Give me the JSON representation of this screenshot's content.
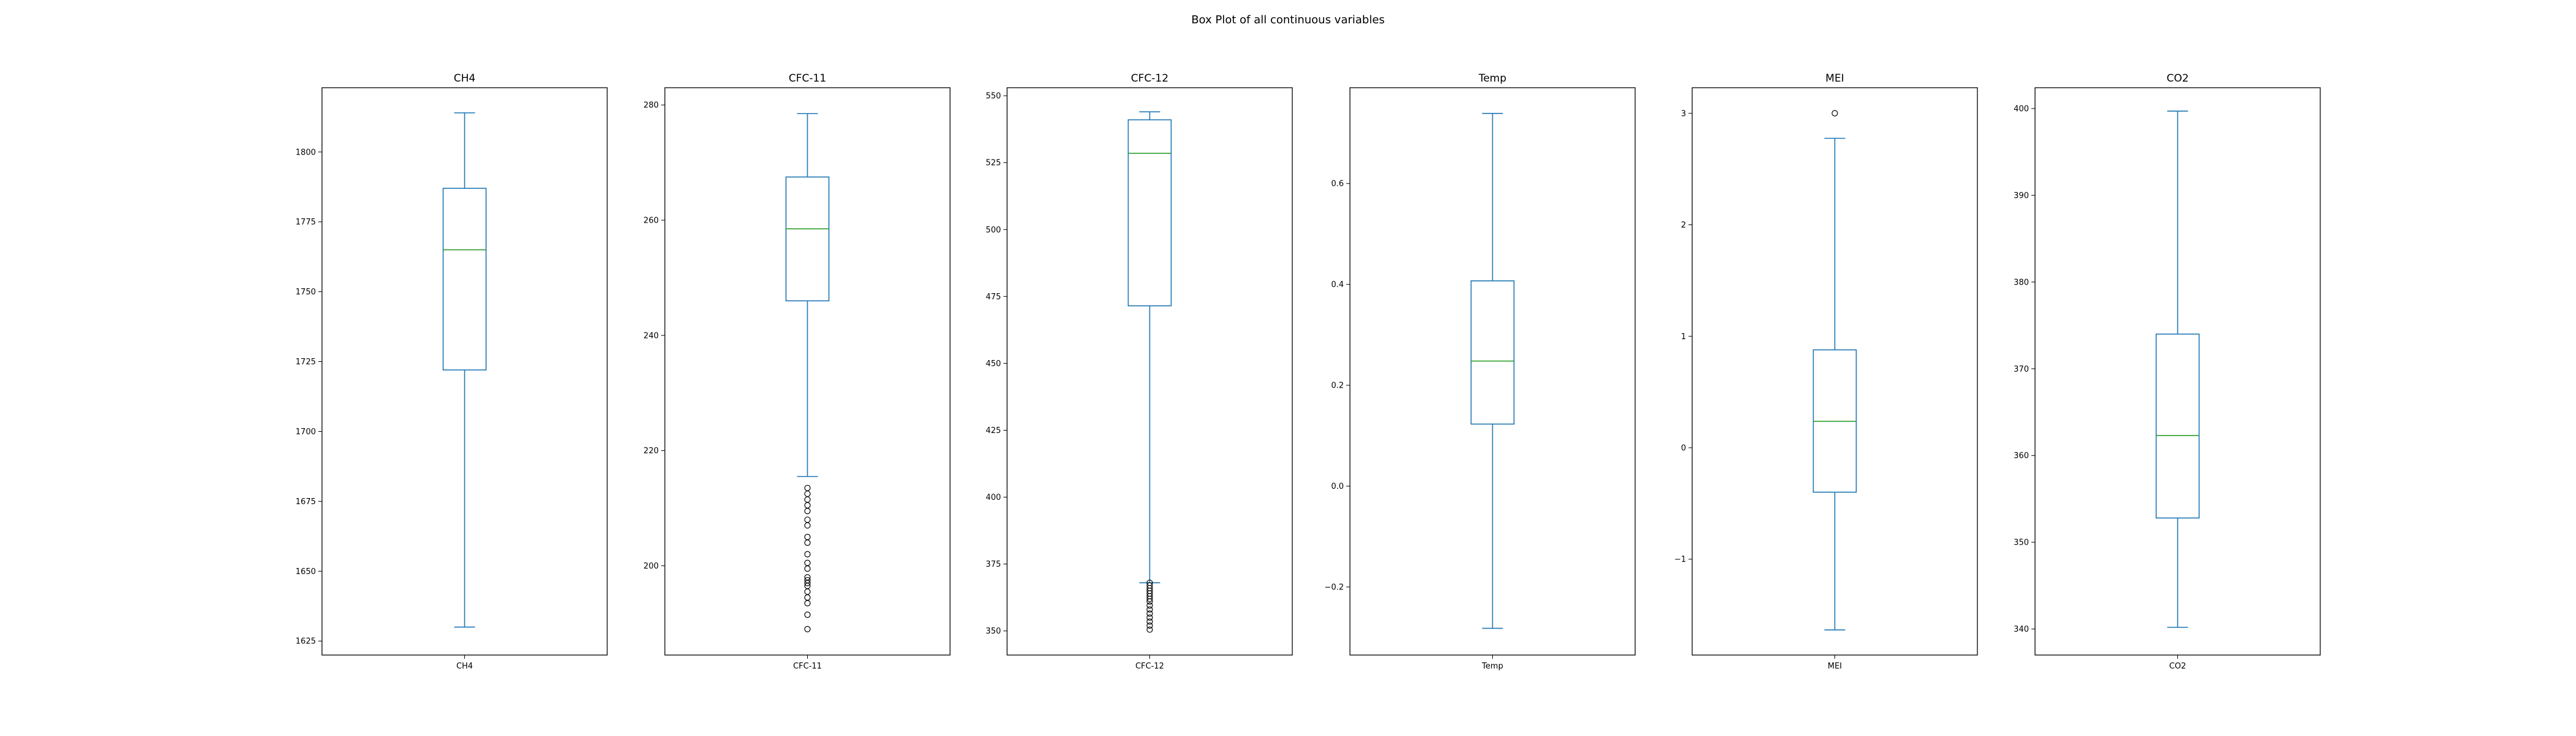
{
  "figure": {
    "title": "Box Plot of all continuous variables"
  },
  "colors": {
    "box": "#1f77b4",
    "median": "#2ca02c",
    "axes": "#000000",
    "outlier": "#000000"
  },
  "chart_data": [
    {
      "type": "box",
      "title": "CH4",
      "categories": [
        "CH4"
      ],
      "xlabel": "",
      "ylabel": "",
      "ylim": [
        1620,
        1823
      ],
      "yticks": [
        1625,
        1650,
        1675,
        1700,
        1725,
        1750,
        1775,
        1800
      ],
      "stats": {
        "whislo": 1630,
        "q1": 1722,
        "median": 1765,
        "q3": 1787,
        "whishi": 1814,
        "fliers": []
      }
    },
    {
      "type": "box",
      "title": "CFC-11",
      "categories": [
        "CFC-11"
      ],
      "xlabel": "",
      "ylabel": "",
      "ylim": [
        184.5,
        283
      ],
      "yticks": [
        200,
        220,
        240,
        260,
        280
      ],
      "stats": {
        "whislo": 215.5,
        "q1": 246,
        "median": 258.5,
        "q3": 267.5,
        "whishi": 278.5,
        "fliers": [
          213.5,
          212.5,
          211.5,
          210.5,
          209.5,
          208,
          207,
          205,
          204,
          202,
          200.5,
          199.5,
          198,
          197.5,
          197,
          196.5,
          195.5,
          194.5,
          193.5,
          191.5,
          189
        ]
      }
    },
    {
      "type": "box",
      "title": "CFC-12",
      "categories": [
        "CFC-12"
      ],
      "xlabel": "",
      "ylabel": "",
      "ylim": [
        341,
        553
      ],
      "yticks": [
        350,
        375,
        400,
        425,
        450,
        475,
        500,
        525,
        550
      ],
      "stats": {
        "whislo": 368,
        "q1": 471.5,
        "median": 528.5,
        "q3": 541,
        "whishi": 544,
        "fliers": [
          368,
          367,
          366,
          365,
          364,
          363,
          362,
          361,
          359.5,
          358,
          356.5,
          355,
          353.5,
          352,
          350.5
        ]
      }
    },
    {
      "type": "box",
      "title": "Temp",
      "categories": [
        "Temp"
      ],
      "xlabel": "",
      "ylabel": "",
      "ylim": [
        -0.335,
        0.79
      ],
      "yticks": [
        -0.2,
        0.0,
        0.2,
        0.4,
        0.6
      ],
      "stats": {
        "whislo": -0.282,
        "q1": 0.123,
        "median": 0.248,
        "q3": 0.407,
        "whishi": 0.739,
        "fliers": []
      }
    },
    {
      "type": "box",
      "title": "MEI",
      "categories": [
        "MEI"
      ],
      "xlabel": "",
      "ylabel": "",
      "ylim": [
        -1.86,
        3.23
      ],
      "yticks": [
        -1,
        0,
        1,
        2,
        3
      ],
      "ytick_labels": [
        "−1",
        "0",
        "1",
        "2",
        "3"
      ],
      "stats": {
        "whislo": -1.635,
        "q1": -0.399,
        "median": 0.237,
        "q3": 0.878,
        "whishi": 2.776,
        "fliers": [
          3.001
        ]
      }
    },
    {
      "type": "box",
      "title": "CO2",
      "categories": [
        "CO2"
      ],
      "xlabel": "",
      "ylabel": "",
      "ylim": [
        337,
        402.4
      ],
      "yticks": [
        340,
        350,
        360,
        370,
        380,
        390,
        400
      ],
      "stats": {
        "whislo": 340.2,
        "q1": 352.8,
        "median": 362.3,
        "q3": 374,
        "whishi": 399.7,
        "fliers": []
      }
    }
  ]
}
